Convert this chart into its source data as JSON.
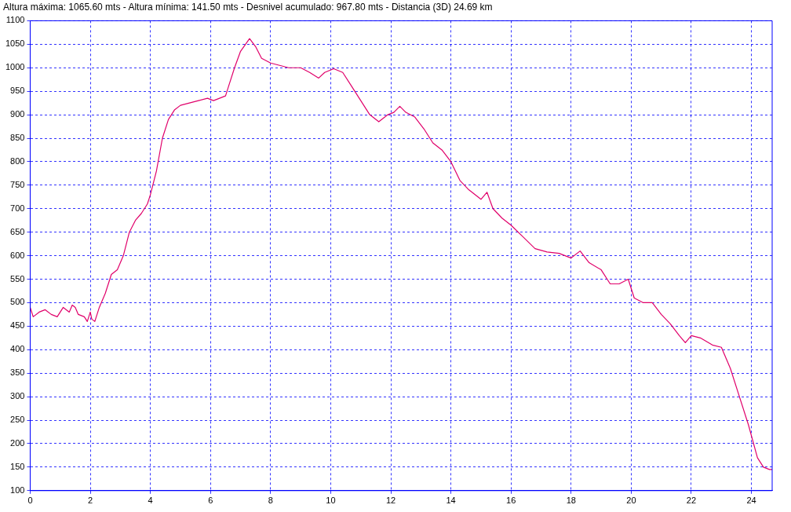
{
  "chart_data": {
    "type": "line",
    "title": "Altura máxima: 1065.60 mts - Altura mínima: 141.50 mts - Desnivel acumulado: 967.80 mts - Distancia (3D) 24.69 km",
    "series": [
      {
        "color": "#e0006a",
        "x": [
          0,
          0.1,
          0.3,
          0.5,
          0.7,
          0.9,
          1.1,
          1.3,
          1.4,
          1.5,
          1.6,
          1.8,
          1.9,
          2.0,
          2.05,
          2.15,
          2.3,
          2.5,
          2.7,
          2.9,
          3.1,
          3.3,
          3.5,
          3.7,
          3.9,
          4.0,
          4.2,
          4.4,
          4.6,
          4.8,
          5.0,
          5.3,
          5.6,
          5.9,
          6.1,
          6.3,
          6.5,
          6.6,
          6.8,
          7.0,
          7.3,
          7.5,
          7.7,
          8.0,
          8.3,
          8.6,
          9.0,
          9.3,
          9.6,
          9.8,
          10.1,
          10.4,
          10.7,
          11.0,
          11.3,
          11.6,
          11.9,
          12.1,
          12.3,
          12.5,
          12.8,
          13.1,
          13.4,
          13.7,
          14.0,
          14.3,
          14.6,
          15.0,
          15.2,
          15.4,
          15.7,
          16.0,
          16.4,
          16.8,
          17.2,
          17.6,
          18.0,
          18.3,
          18.6,
          19.0,
          19.3,
          19.6,
          19.9,
          20.1,
          20.4,
          20.7,
          21.0,
          21.3,
          21.6,
          21.8,
          22.0,
          22.3,
          22.7,
          23.0,
          23.3,
          23.6,
          23.9,
          24.2,
          24.4,
          24.6,
          24.69
        ],
        "values": [
          490,
          470,
          480,
          485,
          475,
          470,
          490,
          480,
          495,
          490,
          475,
          470,
          460,
          480,
          465,
          460,
          490,
          520,
          560,
          570,
          600,
          650,
          675,
          690,
          710,
          730,
          780,
          850,
          890,
          910,
          920,
          925,
          930,
          935,
          930,
          935,
          940,
          960,
          1000,
          1035,
          1062,
          1045,
          1020,
          1010,
          1005,
          1000,
          1000,
          990,
          978,
          990,
          998,
          990,
          960,
          930,
          900,
          885,
          900,
          905,
          918,
          905,
          895,
          870,
          840,
          825,
          800,
          760,
          740,
          720,
          735,
          700,
          680,
          665,
          640,
          615,
          608,
          605,
          595,
          610,
          585,
          570,
          540,
          540,
          550,
          510,
          500,
          500,
          475,
          455,
          430,
          415,
          430,
          425,
          410,
          405,
          360,
          300,
          240,
          170,
          150,
          145,
          145
        ]
      }
    ],
    "xlim": [
      0,
      24.69
    ],
    "xticks": [
      0,
      2,
      4,
      6,
      8,
      10,
      12,
      14,
      16,
      18,
      20,
      22,
      24
    ],
    "ylim": [
      100,
      1100
    ],
    "yticks": [
      100,
      150,
      200,
      250,
      300,
      350,
      400,
      450,
      500,
      550,
      600,
      650,
      700,
      750,
      800,
      850,
      900,
      950,
      1000,
      1050,
      1100
    ],
    "grid": true,
    "legend": false,
    "marker": "none",
    "line_style": "solid"
  }
}
